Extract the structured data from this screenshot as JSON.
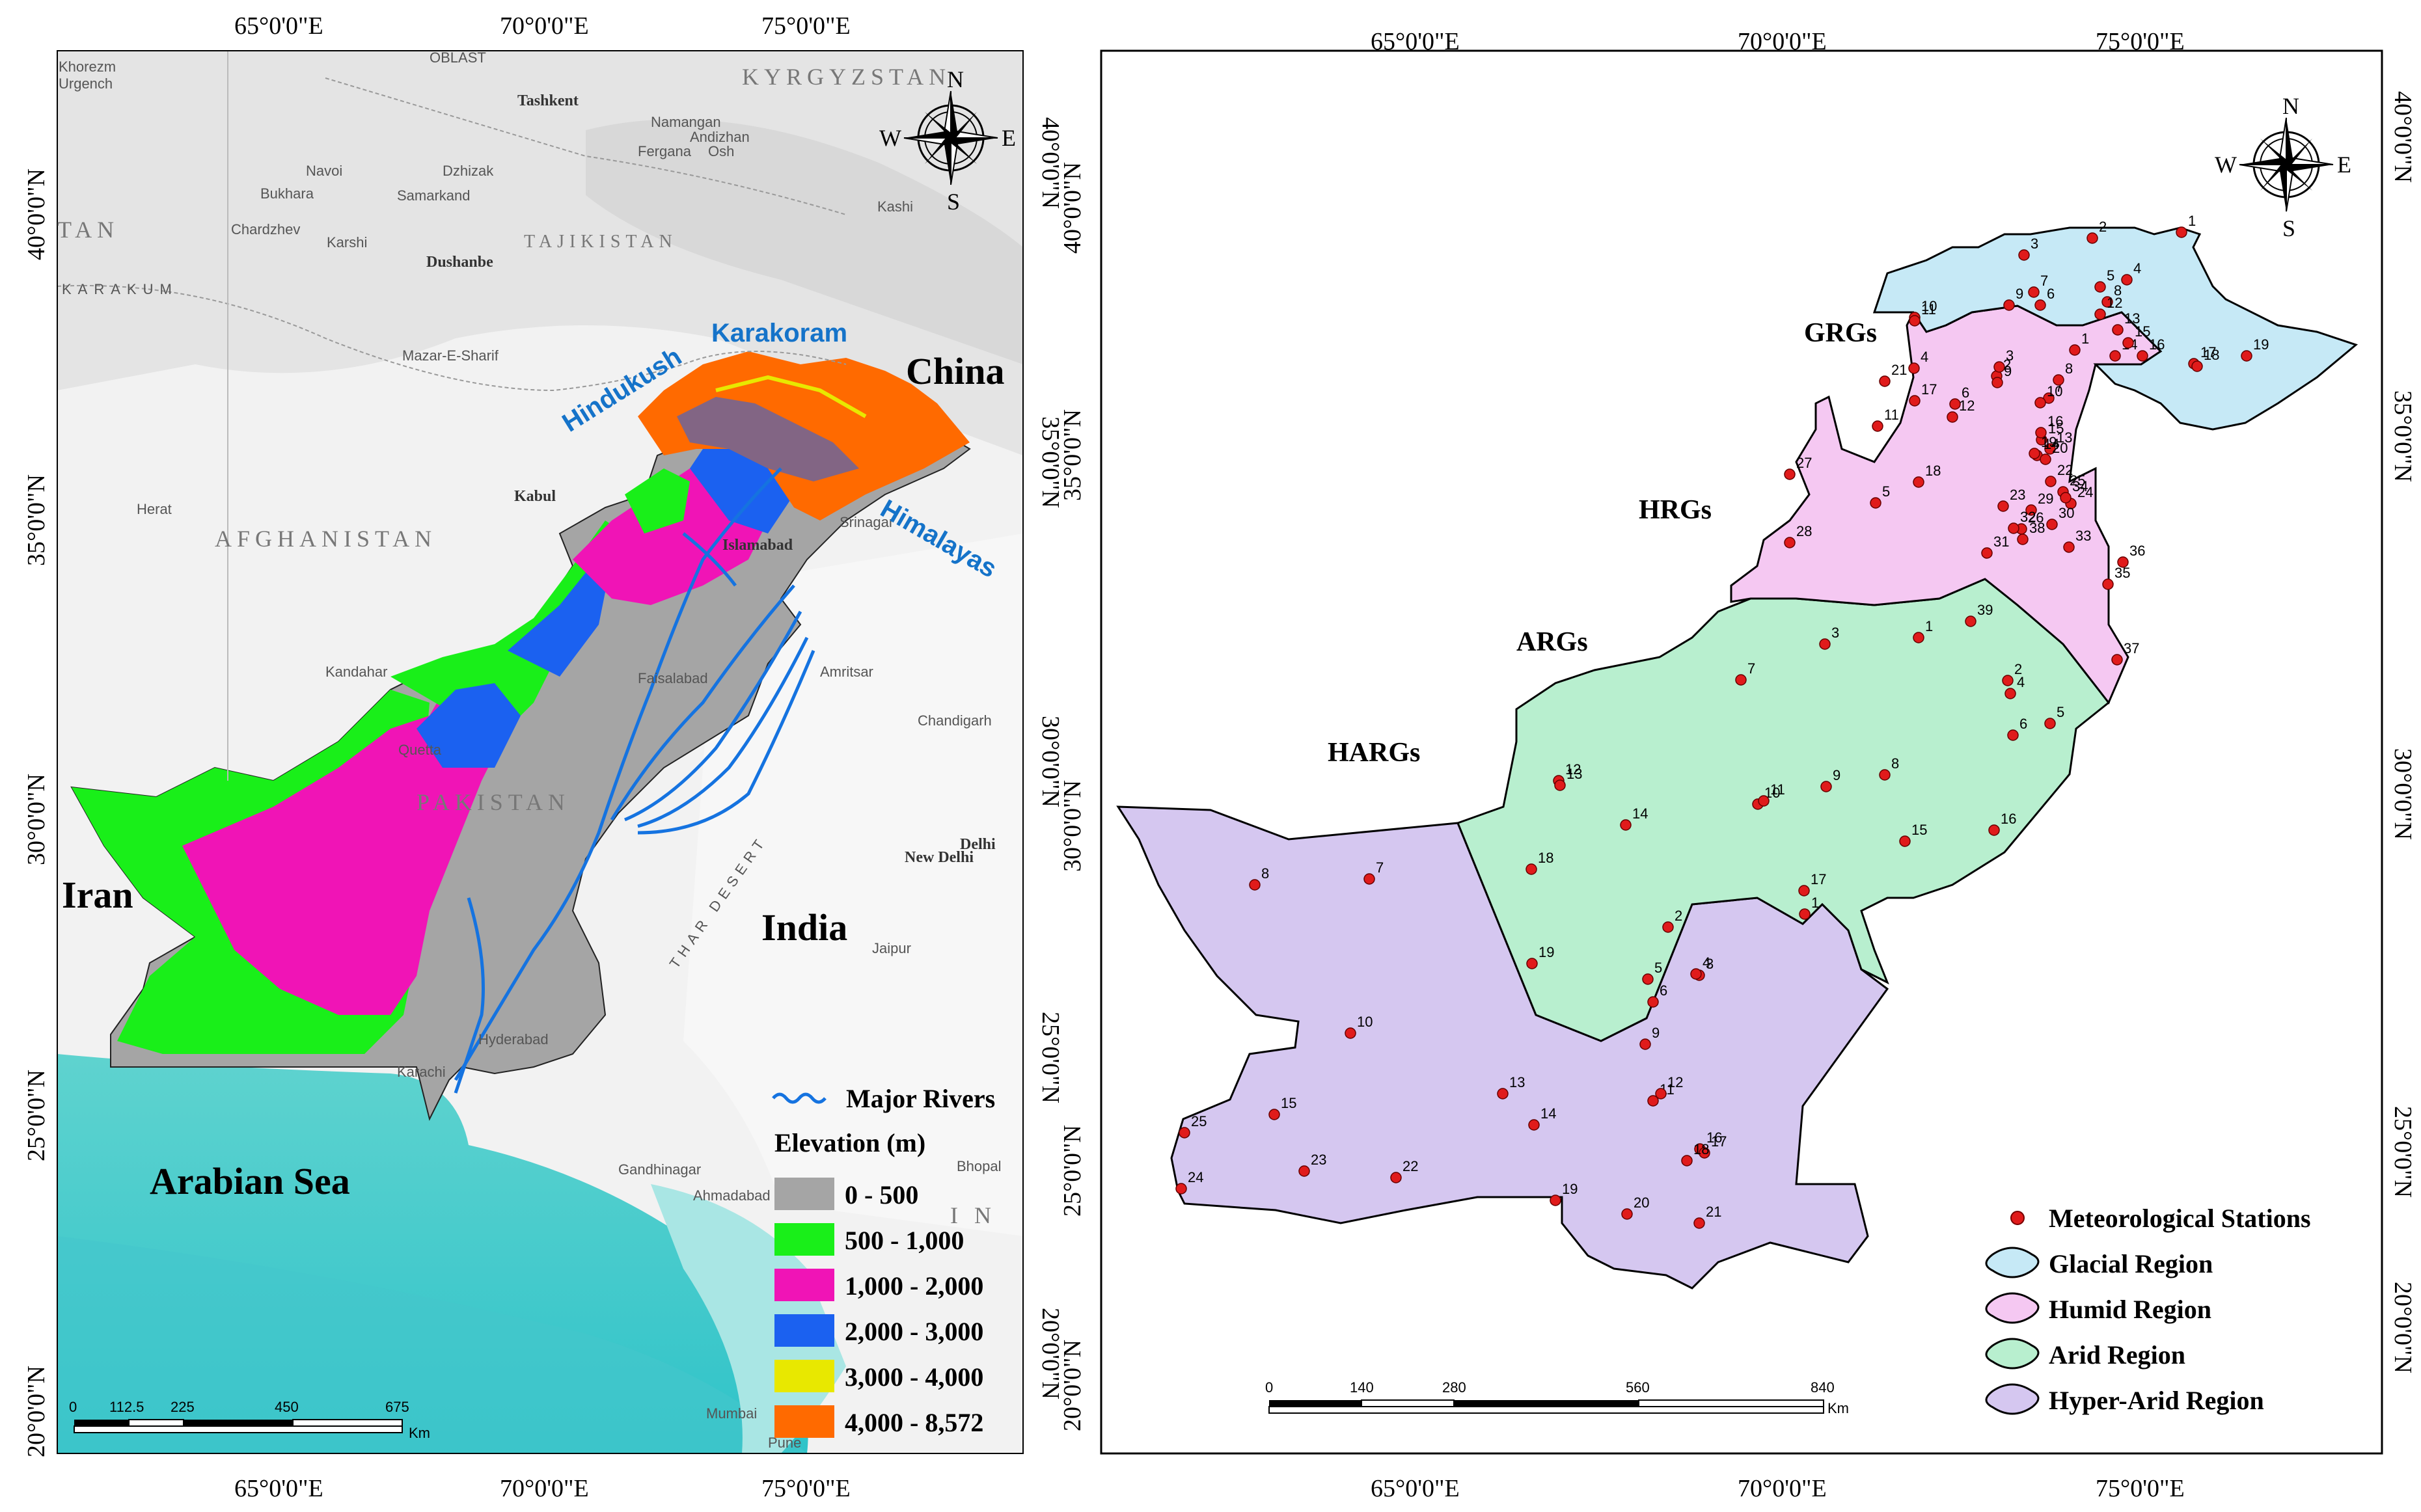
{
  "left_map": {
    "top_lon_labels": [
      "65°0'0\"E",
      "70°0'0\"E",
      "75°0'0\"E"
    ],
    "bottom_lon_labels": [
      "65°0'0\"E",
      "70°0'0\"E",
      "75°0'0\"E"
    ],
    "right_lat_labels": [
      "40°0'0\"N",
      "35°0'0\"N",
      "30°0'0\"N",
      "25°0'0\"N",
      "20°0'0\"N"
    ],
    "left_lat_labels": [
      "40°0'0\"N",
      "35°0'0\"N",
      "30°0'0\"N",
      "25°0'0\"N",
      "20°0'0\"N"
    ],
    "compass": {
      "n": "N",
      "s": "S",
      "e": "E",
      "w": "W"
    },
    "big_labels": {
      "china": "China",
      "iran": "Iran",
      "india": "India",
      "sea": "Arabian Sea"
    },
    "ranges": {
      "hindukush": "Hindukush",
      "karakoram": "Karakoram",
      "himalayas": "Himalayas"
    },
    "countries": {
      "afghanistan": "AFGHANISTAN",
      "tajikistan": "TAJIKISTAN",
      "kyrgyzstan": "KYRGYZSTAN",
      "pakistan": "PAKISTAN",
      "iran_frag": "TAN",
      "india_frag": "I N"
    },
    "places": [
      "Tashkent",
      "Namangan",
      "Andizhan",
      "Fergana",
      "Osh",
      "Navoi",
      "Bukhara",
      "Dzhizak",
      "Samarkand",
      "Kashi",
      "Chardzhev",
      "Karshi",
      "Dushanbe",
      "Mazar-E-Sharif",
      "Herat",
      "Kabul",
      "Srinagar",
      "Islamabad",
      "Kandahar",
      "Faisalabad",
      "Amritsar",
      "Chandigarh",
      "Quetta",
      "New Delhi",
      "Delhi",
      "Jaipur",
      "Hyderabad",
      "Karachi",
      "Gandhinagar",
      "Ahmadabad",
      "Bhopal",
      "Mumbai",
      "Pune",
      "Khorezm",
      "Urgench",
      "KARAKUM",
      "THAR DESERT",
      "OBLAST"
    ],
    "legend": {
      "rivers": "Major Rivers",
      "elevation_title": "Elevation (m)",
      "classes": [
        {
          "label": "0 - 500",
          "color": "#a5a5a5"
        },
        {
          "label": "500 - 1,000",
          "color": "#19ef19"
        },
        {
          "label": "1,000 - 2,000",
          "color": "#f014b6"
        },
        {
          "label": "2,000 - 3,000",
          "color": "#1b61f0"
        },
        {
          "label": "3,000 - 4,000",
          "color": "#e8e800"
        },
        {
          "label": "4,000 - 8,572",
          "color": "#ff6a00"
        }
      ]
    },
    "scale": {
      "ticks": [
        "0",
        "112.5",
        "225",
        "450",
        "675"
      ],
      "unit": "Km"
    }
  },
  "right_map": {
    "top_lon_labels": [
      "65°0'0\"E",
      "70°0'0\"E",
      "75°0'0\"E"
    ],
    "bottom_lon_labels": [
      "65°0'0\"E",
      "70°0'0\"E",
      "75°0'0\"E"
    ],
    "left_lat_labels": [
      "40°0'0\"N",
      "35°0'0\"N",
      "30°0'0\"N",
      "25°0'0\"N",
      "20°0'0\"N"
    ],
    "right_lat_labels": [
      "40°0'0\"N",
      "35°0'0\"N",
      "30°0'0\"N",
      "25°0'0\"N",
      "20°0'0\"N"
    ],
    "compass": {
      "n": "N",
      "s": "S",
      "e": "E",
      "w": "W"
    },
    "region_labels": {
      "grgs": "GRGs",
      "hrgs": "HRGs",
      "args": "ARGs",
      "hargs": "HARGs"
    },
    "legend": {
      "stations": "Meteorological Stations",
      "glacial": "Glacial Region",
      "humid": "Humid Region",
      "arid": "Arid Region",
      "hyper": "Hyper-Arid Region"
    },
    "colors": {
      "glacial": "#c6e9f6",
      "humid": "#f5c8f2",
      "arid": "#b8efcf",
      "hyper": "#d5c7f0",
      "station": "#e01b1b"
    },
    "scale": {
      "ticks": [
        "0",
        "140",
        "280",
        "560",
        "840"
      ],
      "unit": "Km"
    }
  }
}
